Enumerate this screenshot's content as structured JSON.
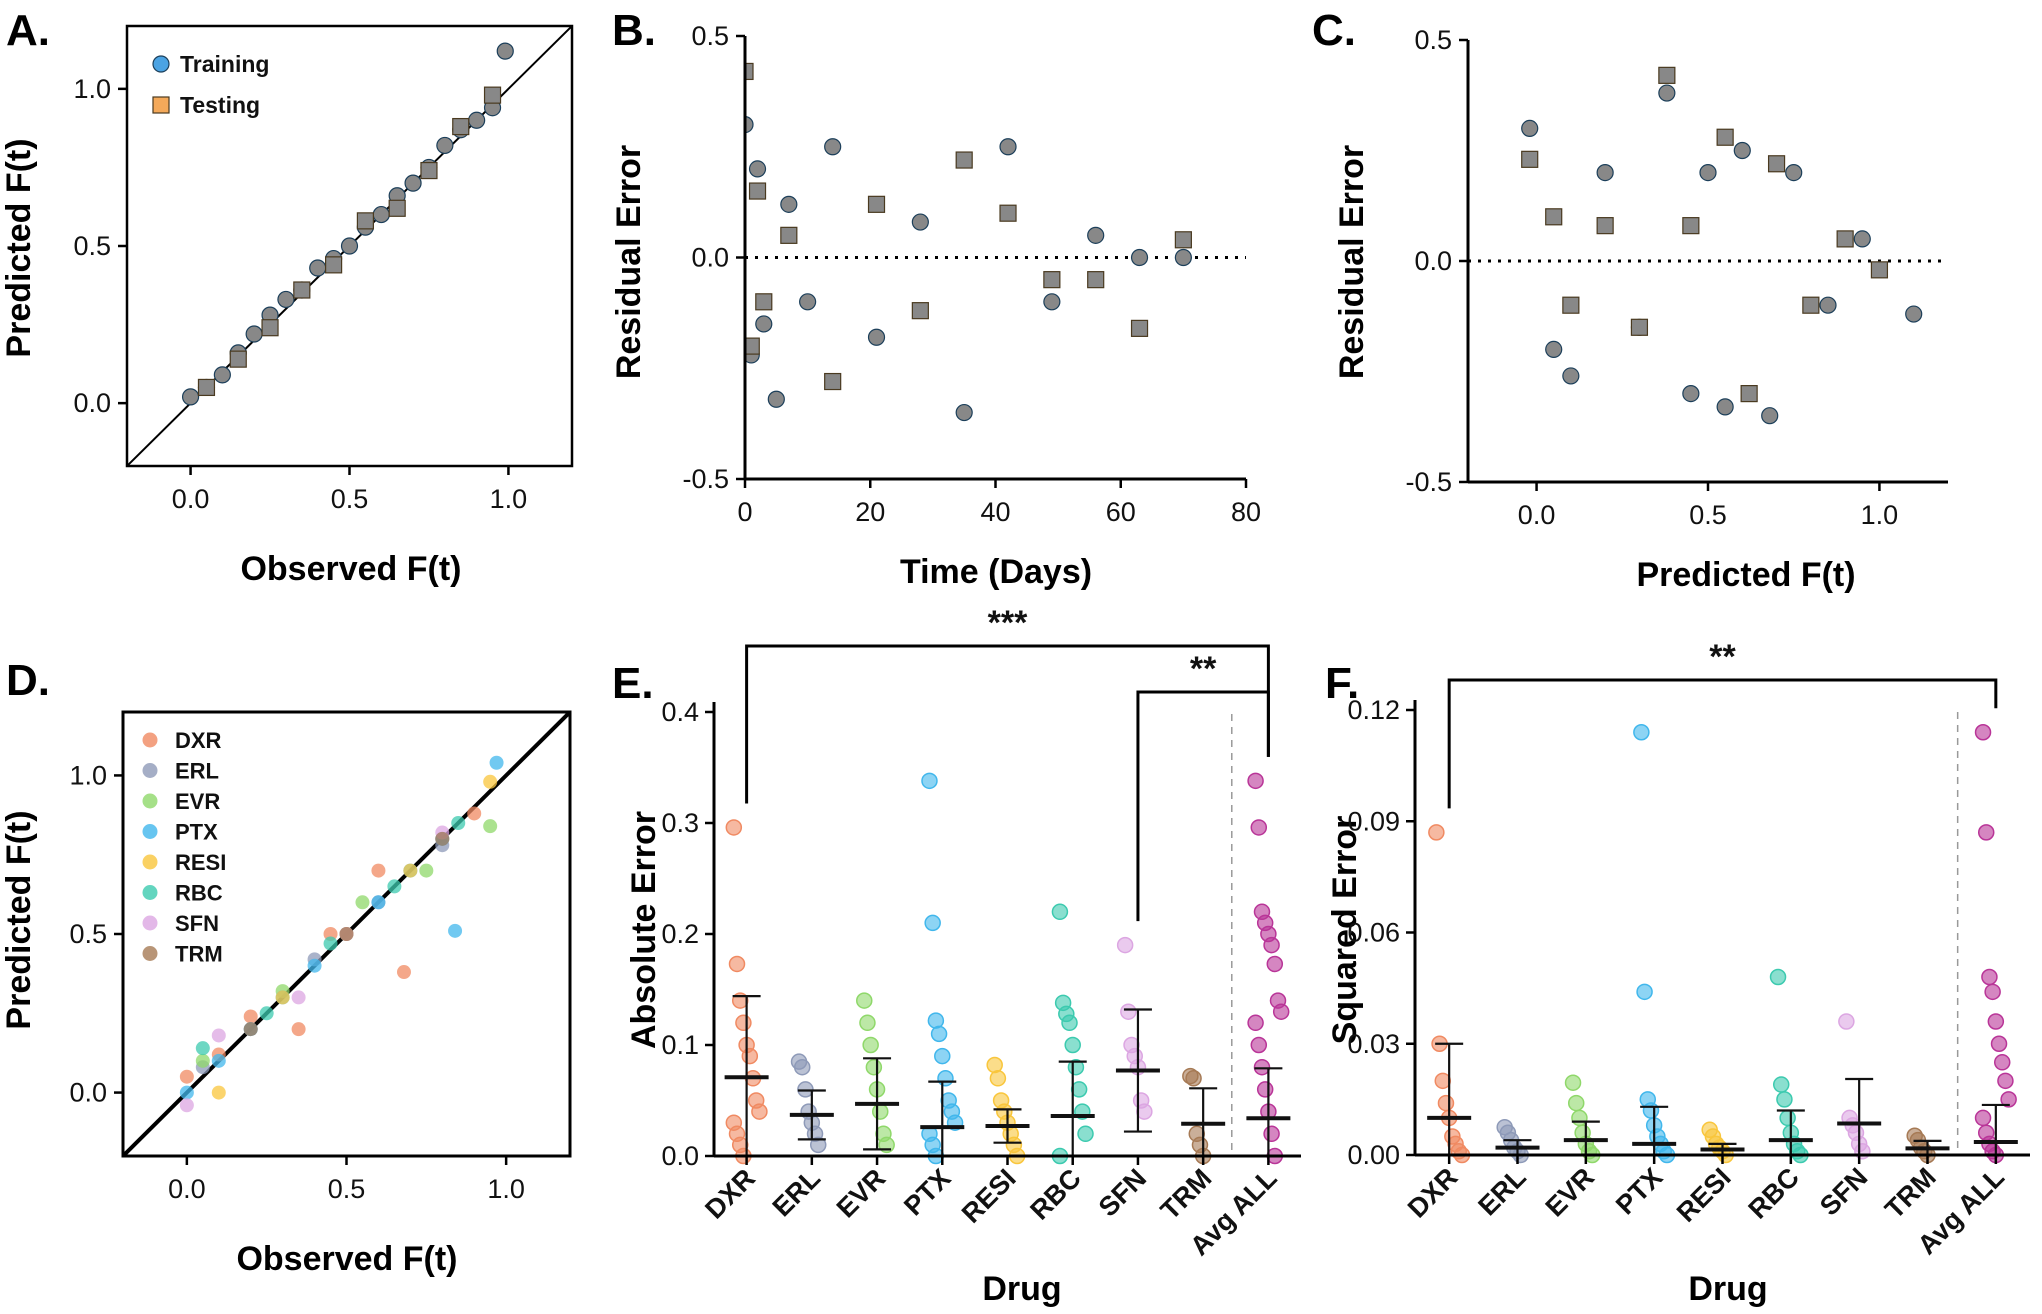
{
  "colors": {
    "training": "#4ba3e3",
    "testing": "#f4a95a",
    "DXR": "#f08a62",
    "ERL": "#8e9ab8",
    "EVR": "#8fd86a",
    "PTX": "#41b7ec",
    "RESI": "#f9c63c",
    "RBC": "#3ccaaf",
    "SFN": "#dca6e2",
    "TRM": "#a67a55",
    "Avg ALL": "#b93598"
  },
  "panels": {
    "A": {
      "label": "A.",
      "xlabel": "Observed F(t)",
      "ylabel": "Predicted F(t)"
    },
    "B": {
      "label": "B.",
      "xlabel": "Time (Days)",
      "ylabel": "Residual Error"
    },
    "C": {
      "label": "C.",
      "xlabel": "Predicted F(t)",
      "ylabel": "Residual Error"
    },
    "D": {
      "label": "D.",
      "xlabel": "Observed F(t)",
      "ylabel": "Predicted F(t)"
    },
    "E": {
      "label": "E.",
      "xlabel": "Drug",
      "ylabel": "Absolute Error",
      "sig": [
        "***",
        "**"
      ]
    },
    "F": {
      "label": "F.",
      "xlabel": "Drug",
      "ylabel": "Squared Error",
      "sig": [
        "**"
      ]
    }
  },
  "chart_data": [
    {
      "panel": "A",
      "type": "scatter",
      "xlim": [
        -0.2,
        1.2
      ],
      "ylim": [
        -0.2,
        1.2
      ],
      "xticks": [
        "0.0",
        "0.5",
        "1.0"
      ],
      "yticks": [
        "0.0",
        "0.5",
        "1.0"
      ],
      "identity_line": true,
      "legend": {
        "placement": "top-left",
        "items": [
          "Training",
          "Testing"
        ]
      },
      "series": [
        {
          "name": "Training",
          "marker": "circle",
          "x": [
            0.0,
            0.05,
            0.1,
            0.15,
            0.2,
            0.25,
            0.3,
            0.35,
            0.4,
            0.45,
            0.5,
            0.55,
            0.6,
            0.65,
            0.7,
            0.75,
            0.8,
            0.85,
            0.9,
            0.95,
            0.99
          ],
          "y": [
            0.02,
            0.05,
            0.09,
            0.16,
            0.22,
            0.28,
            0.33,
            0.36,
            0.43,
            0.46,
            0.5,
            0.56,
            0.6,
            0.66,
            0.7,
            0.75,
            0.82,
            0.87,
            0.9,
            0.94,
            1.12
          ]
        },
        {
          "name": "Testing",
          "marker": "square",
          "x": [
            0.05,
            0.15,
            0.25,
            0.35,
            0.45,
            0.55,
            0.65,
            0.75,
            0.85,
            0.95
          ],
          "y": [
            0.05,
            0.14,
            0.24,
            0.36,
            0.44,
            0.58,
            0.62,
            0.74,
            0.88,
            0.98
          ]
        }
      ]
    },
    {
      "panel": "B",
      "type": "scatter",
      "xlim": [
        0,
        80
      ],
      "ylim": [
        -0.5,
        0.5
      ],
      "xticks": [
        "0",
        "20",
        "40",
        "60",
        "80"
      ],
      "yticks": [
        "-0.5",
        "0.0",
        "0.5"
      ],
      "zero_line": "dotted",
      "series": [
        {
          "name": "Training",
          "marker": "circle",
          "x": [
            0,
            1,
            2,
            3,
            5,
            7,
            10,
            14,
            21,
            28,
            35,
            42,
            49,
            56,
            63,
            70
          ],
          "y": [
            0.3,
            -0.22,
            0.2,
            -0.15,
            -0.32,
            0.12,
            -0.1,
            0.25,
            -0.18,
            0.08,
            -0.35,
            0.25,
            -0.1,
            0.05,
            0.0,
            0.0
          ]
        },
        {
          "name": "Testing",
          "marker": "square",
          "x": [
            0,
            1,
            2,
            3,
            7,
            14,
            21,
            28,
            35,
            42,
            49,
            56,
            63,
            70
          ],
          "y": [
            0.42,
            -0.2,
            0.15,
            -0.1,
            0.05,
            -0.28,
            0.12,
            -0.12,
            0.22,
            0.1,
            -0.05,
            -0.05,
            -0.16,
            0.04
          ]
        }
      ]
    },
    {
      "panel": "C",
      "type": "scatter",
      "xlim": [
        -0.2,
        1.2
      ],
      "ylim": [
        -0.5,
        0.5
      ],
      "xticks": [
        "0.0",
        "0.5",
        "1.0"
      ],
      "yticks": [
        "-0.5",
        "0.0",
        "0.5"
      ],
      "zero_line": "dotted",
      "series": [
        {
          "name": "Training",
          "marker": "circle",
          "x": [
            -0.02,
            0.05,
            0.1,
            0.2,
            0.3,
            0.38,
            0.45,
            0.5,
            0.55,
            0.6,
            0.68,
            0.75,
            0.85,
            0.95,
            1.1
          ],
          "y": [
            0.3,
            -0.2,
            -0.26,
            0.2,
            -0.15,
            0.38,
            -0.3,
            0.2,
            -0.33,
            0.25,
            -0.35,
            0.2,
            -0.1,
            0.05,
            -0.12
          ]
        },
        {
          "name": "Testing",
          "marker": "square",
          "x": [
            -0.02,
            0.05,
            0.1,
            0.2,
            0.3,
            0.38,
            0.45,
            0.55,
            0.62,
            0.7,
            0.8,
            0.9,
            1.0
          ],
          "y": [
            0.23,
            0.1,
            -0.1,
            0.08,
            -0.15,
            0.42,
            0.08,
            0.28,
            -0.3,
            0.22,
            -0.1,
            0.05,
            -0.02
          ]
        }
      ]
    },
    {
      "panel": "D",
      "type": "scatter",
      "xlim": [
        -0.2,
        1.2
      ],
      "ylim": [
        -0.2,
        1.2
      ],
      "xticks": [
        "0.0",
        "0.5",
        "1.0"
      ],
      "yticks": [
        "0.0",
        "0.5",
        "1.0"
      ],
      "identity_line": true,
      "legend": {
        "placement": "top-left",
        "items": [
          "DXR",
          "ERL",
          "EVR",
          "PTX",
          "RESI",
          "RBC",
          "SFN",
          "TRM"
        ]
      },
      "series": [
        {
          "name": "DXR",
          "x": [
            0.0,
            0.1,
            0.2,
            0.35,
            0.45,
            0.6,
            0.68,
            0.8,
            0.9
          ],
          "y": [
            0.05,
            0.12,
            0.24,
            0.2,
            0.5,
            0.7,
            0.38,
            0.8,
            0.88
          ]
        },
        {
          "name": "ERL",
          "x": [
            0.05,
            0.2,
            0.4,
            0.6,
            0.8
          ],
          "y": [
            0.08,
            0.2,
            0.42,
            0.6,
            0.78
          ]
        },
        {
          "name": "EVR",
          "x": [
            0.05,
            0.3,
            0.55,
            0.75,
            0.95
          ],
          "y": [
            0.1,
            0.32,
            0.6,
            0.7,
            0.84
          ]
        },
        {
          "name": "PTX",
          "x": [
            0.0,
            0.1,
            0.2,
            0.3,
            0.4,
            0.5,
            0.6,
            0.7,
            0.8,
            0.84,
            0.97
          ],
          "y": [
            0.0,
            0.1,
            0.2,
            0.3,
            0.4,
            0.5,
            0.6,
            0.7,
            0.8,
            0.51,
            1.04
          ]
        },
        {
          "name": "RESI",
          "x": [
            0.1,
            0.3,
            0.5,
            0.7,
            0.95
          ],
          "y": [
            0.0,
            0.3,
            0.5,
            0.7,
            0.98
          ]
        },
        {
          "name": "RBC",
          "x": [
            0.05,
            0.25,
            0.45,
            0.65,
            0.85
          ],
          "y": [
            0.14,
            0.25,
            0.47,
            0.65,
            0.85
          ]
        },
        {
          "name": "SFN",
          "x": [
            0.0,
            0.1,
            0.35,
            0.5,
            0.8
          ],
          "y": [
            -0.04,
            0.18,
            0.3,
            0.5,
            0.82
          ]
        },
        {
          "name": "TRM",
          "x": [
            0.2,
            0.5,
            0.8
          ],
          "y": [
            0.2,
            0.5,
            0.8
          ]
        }
      ]
    },
    {
      "panel": "E",
      "type": "scatter",
      "categories": [
        "DXR",
        "ERL",
        "EVR",
        "PTX",
        "RESI",
        "RBC",
        "SFN",
        "TRM",
        "Avg ALL"
      ],
      "ylim": [
        0,
        0.4
      ],
      "yticks": [
        "0.0",
        "0.1",
        "0.2",
        "0.3",
        "0.4"
      ],
      "mean": [
        0.071,
        0.037,
        0.047,
        0.026,
        0.027,
        0.036,
        0.077,
        0.029,
        0.034
      ],
      "sd": [
        0.073,
        0.022,
        0.041,
        0.041,
        0.015,
        0.049,
        0.055,
        0.032,
        0.045
      ],
      "points": [
        [
          0.296,
          0.173,
          0.14,
          0.12,
          0.1,
          0.09,
          0.07,
          0.05,
          0.04,
          0.03,
          0.02,
          0.01,
          0.0
        ],
        [
          0.085,
          0.08,
          0.06,
          0.04,
          0.03,
          0.02,
          0.01
        ],
        [
          0.14,
          0.12,
          0.1,
          0.08,
          0.06,
          0.04,
          0.02,
          0.01
        ],
        [
          0.338,
          0.21,
          0.122,
          0.11,
          0.09,
          0.07,
          0.05,
          0.04,
          0.03,
          0.02,
          0.01,
          0.0
        ],
        [
          0.082,
          0.07,
          0.05,
          0.04,
          0.03,
          0.02,
          0.01,
          0.0
        ],
        [
          0.22,
          0.138,
          0.128,
          0.12,
          0.1,
          0.08,
          0.06,
          0.04,
          0.02,
          0.0
        ],
        [
          0.19,
          0.13,
          0.1,
          0.09,
          0.08,
          0.05,
          0.04
        ],
        [
          0.072,
          0.07,
          0.02,
          0.01,
          0.0
        ],
        [
          0.338,
          0.296,
          0.22,
          0.21,
          0.2,
          0.19,
          0.173,
          0.14,
          0.13,
          0.12,
          0.1,
          0.08,
          0.06,
          0.04,
          0.02,
          0.0
        ]
      ],
      "brackets": [
        {
          "from": "DXR",
          "to": "Avg ALL",
          "label": "***"
        },
        {
          "from": "SFN",
          "to": "Avg ALL",
          "label": "**"
        }
      ]
    },
    {
      "panel": "F",
      "type": "scatter",
      "categories": [
        "DXR",
        "ERL",
        "EVR",
        "PTX",
        "RESI",
        "RBC",
        "SFN",
        "TRM",
        "Avg ALL"
      ],
      "ylim": [
        0,
        0.12
      ],
      "yticks": [
        "0.00",
        "0.03",
        "0.06",
        "0.09",
        "0.12"
      ],
      "mean": [
        0.01,
        0.002,
        0.004,
        0.003,
        0.0015,
        0.004,
        0.0085,
        0.0018,
        0.0035
      ],
      "sd": [
        0.02,
        0.002,
        0.005,
        0.01,
        0.0015,
        0.008,
        0.012,
        0.002,
        0.01
      ],
      "points": [
        [
          0.087,
          0.03,
          0.02,
          0.014,
          0.01,
          0.005,
          0.003,
          0.001,
          0.0
        ],
        [
          0.0075,
          0.006,
          0.004,
          0.002,
          0.001,
          0.0
        ],
        [
          0.0195,
          0.014,
          0.01,
          0.006,
          0.003,
          0.001,
          0.0
        ],
        [
          0.114,
          0.044,
          0.015,
          0.012,
          0.008,
          0.005,
          0.003,
          0.001,
          0.0
        ],
        [
          0.0068,
          0.005,
          0.003,
          0.002,
          0.001,
          0.0
        ],
        [
          0.048,
          0.019,
          0.015,
          0.01,
          0.006,
          0.003,
          0.001,
          0.0
        ],
        [
          0.036,
          0.01,
          0.008,
          0.006,
          0.003,
          0.001
        ],
        [
          0.0052,
          0.004,
          0.002,
          0.001,
          0.0
        ],
        [
          0.114,
          0.087,
          0.048,
          0.044,
          0.036,
          0.03,
          0.025,
          0.02,
          0.015,
          0.01,
          0.006,
          0.003,
          0.001,
          0.0
        ]
      ],
      "brackets": [
        {
          "from": "DXR",
          "to": "Avg ALL",
          "label": "**"
        }
      ]
    }
  ]
}
